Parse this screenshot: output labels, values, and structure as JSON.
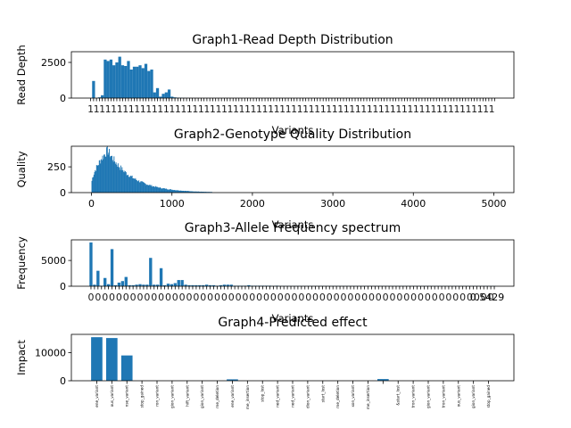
{
  "chart_data": [
    {
      "type": "bar",
      "title": "Graph1-Read Depth Distribution",
      "xlabel": "Variants",
      "ylabel": "Read Depth",
      "ylim": [
        0,
        3250
      ],
      "yticks": [
        0,
        2500
      ],
      "x_tick_labels_overlapping": true,
      "values": [
        0,
        1200,
        0,
        50,
        200,
        2700,
        2600,
        2700,
        2300,
        2500,
        2900,
        2300,
        2250,
        2600,
        2000,
        2200,
        2200,
        2300,
        2100,
        2400,
        1900,
        2000,
        400,
        700,
        100,
        300,
        400,
        600,
        100,
        50,
        30,
        20,
        10,
        5,
        3,
        2,
        1,
        0,
        0,
        0,
        0,
        0,
        0,
        0,
        0,
        0,
        0,
        0,
        0,
        0,
        0,
        0,
        0,
        0,
        0,
        0,
        0,
        0,
        0,
        0,
        0,
        0,
        0,
        0,
        0,
        0,
        0,
        0,
        0,
        0,
        0,
        0,
        0,
        0,
        0,
        0,
        0,
        0,
        0,
        0,
        0,
        0,
        0,
        0,
        0,
        0,
        0,
        0,
        0,
        0,
        0,
        0,
        0,
        0,
        0,
        0,
        0,
        0,
        0,
        0,
        0,
        0,
        0,
        0,
        0,
        0,
        0,
        0,
        0,
        0,
        0,
        0,
        0,
        0,
        0,
        0,
        0,
        0,
        0,
        0,
        0,
        0,
        0,
        0,
        0,
        0,
        0,
        0,
        0,
        0,
        0,
        0,
        0,
        0,
        0,
        0,
        0,
        0,
        0,
        0
      ]
    },
    {
      "type": "bar",
      "title": "Graph2-Genotype Quality Distribution",
      "xlabel": "Variants",
      "ylabel": "Quality",
      "xlim": [
        -250,
        5250
      ],
      "ylim": [
        0,
        450
      ],
      "xticks": [
        0,
        1000,
        2000,
        3000,
        4000,
        5000
      ],
      "yticks": [
        0,
        250
      ],
      "x_range": [
        0,
        1500
      ],
      "peak_x": 200,
      "peak_y": 410
    },
    {
      "type": "bar",
      "title": "Graph3-Allele Frequency spectrum",
      "xlabel": "Variants",
      "ylabel": "Frequency",
      "ylim": [
        0,
        9000
      ],
      "yticks": [
        0,
        5000
      ],
      "last_tick_label": "0.5429",
      "x_tick_labels_overlapping": true,
      "values": [
        8500,
        300,
        3000,
        100,
        1600,
        400,
        7200,
        200,
        700,
        1000,
        1800,
        200,
        200,
        300,
        400,
        300,
        300,
        5500,
        300,
        300,
        3500,
        200,
        500,
        400,
        600,
        1200,
        1200,
        300,
        200,
        200,
        200,
        200,
        200,
        300,
        200,
        200,
        100,
        200,
        300,
        300,
        300,
        100,
        100,
        100,
        100,
        200,
        100,
        100,
        100,
        100,
        100,
        100,
        50,
        100,
        50,
        50,
        50,
        50,
        50,
        50,
        50,
        50,
        50,
        50,
        50,
        50,
        50,
        50,
        50,
        50,
        50,
        50,
        50,
        50,
        50,
        50,
        50,
        50,
        50,
        50,
        50,
        50,
        50,
        50,
        50,
        50,
        50,
        50,
        50,
        50,
        50,
        50,
        50,
        50,
        50,
        50,
        50,
        50,
        50,
        50,
        50,
        50,
        50,
        50,
        50,
        50,
        50,
        50,
        50,
        50,
        50,
        50,
        50,
        50,
        50,
        50
      ]
    },
    {
      "type": "bar",
      "title": "Graph4-Predicted effect",
      "xlabel": "",
      "ylabel": "Impact",
      "ylim": [
        0,
        16500
      ],
      "yticks": [
        0,
        10000
      ],
      "categories": [
        "ene_variant",
        "ous_variant",
        "nse_variant",
        "stop_gained",
        "ron_variant",
        "gion_variant",
        "hift_variant",
        "gion_variant",
        "me_deletion",
        "ene_variant",
        "me_insertion",
        "stop_lost",
        "ned_variant",
        "ned_variant",
        "dion_variant",
        "start_lost",
        "me_deletion",
        "xon_variant",
        "me_insertion",
        "",
        "&start_lost",
        "tron_variant",
        "gion_variant",
        "tron_variant",
        "ous_variant",
        "gion_variant",
        "stop_gained"
      ],
      "values": [
        15500,
        15200,
        9000,
        0,
        0,
        0,
        0,
        0,
        0,
        500,
        0,
        0,
        0,
        0,
        0,
        0,
        0,
        0,
        0,
        600,
        0,
        0,
        0,
        0,
        0,
        0,
        0
      ]
    }
  ]
}
